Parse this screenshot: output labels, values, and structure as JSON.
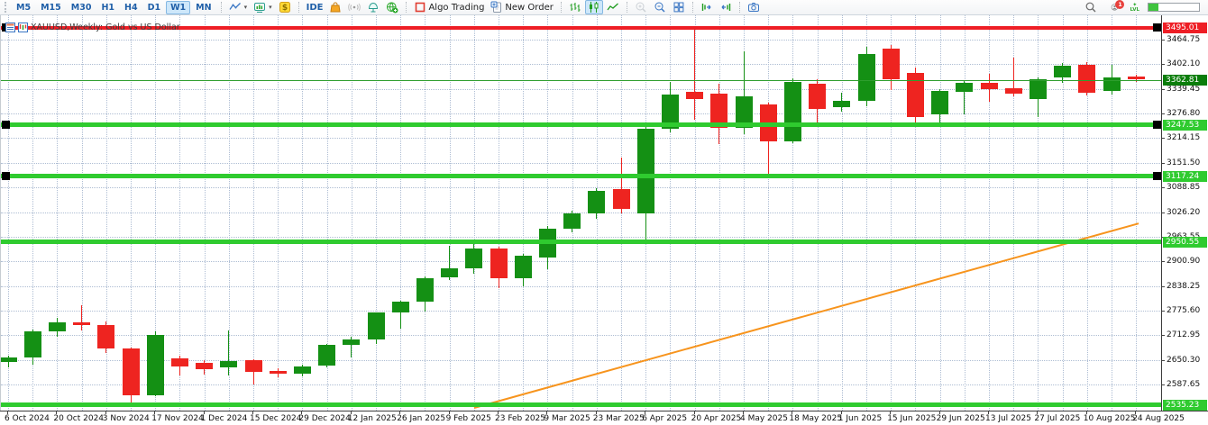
{
  "toolbar": {
    "timeframes": [
      {
        "label": "M5",
        "active": false
      },
      {
        "label": "M15",
        "active": false
      },
      {
        "label": "M30",
        "active": false
      },
      {
        "label": "H1",
        "active": false
      },
      {
        "label": "H4",
        "active": false
      },
      {
        "label": "D1",
        "active": false
      },
      {
        "label": "W1",
        "active": true
      },
      {
        "label": "MN",
        "active": false
      }
    ],
    "groups": [
      [
        {
          "name": "chart-line",
          "dropdown": true
        },
        {
          "name": "indicators",
          "dropdown": true
        },
        {
          "name": "dollar"
        }
      ],
      [
        {
          "name": "ide",
          "label": "IDE",
          "text_only": true
        },
        {
          "name": "market-bag"
        },
        {
          "name": "signals"
        },
        {
          "name": "vps"
        },
        {
          "name": "community"
        }
      ],
      [
        {
          "name": "algo-trading",
          "label": "Algo Trading"
        },
        {
          "name": "new-order",
          "label": "New Order"
        }
      ],
      [
        {
          "name": "bars"
        },
        {
          "name": "candles",
          "active": true
        },
        {
          "name": "line-chart"
        }
      ],
      [
        {
          "name": "zoom-in",
          "disabled": true
        },
        {
          "name": "zoom-out"
        },
        {
          "name": "grid"
        }
      ],
      [
        {
          "name": "shift-right"
        },
        {
          "name": "shift-left"
        }
      ],
      [
        {
          "name": "camera"
        }
      ]
    ],
    "right": {
      "search_icon": "search",
      "notifications_badge": "1",
      "level_label": "LVL",
      "level_star": "✦",
      "progress_fill_pct": 20
    }
  },
  "chart": {
    "title": "XAUUSD,Weekly: Gold vs US Dollar",
    "symbol": "XAUUSD",
    "period": "Weekly"
  },
  "chart_data": {
    "type": "candlestick",
    "title": "XAUUSD,Weekly: Gold vs US Dollar",
    "current_price": 3362.81,
    "visible_price_range": [
      2521,
      3527
    ],
    "colors": {
      "bull": "#149014",
      "bear": "#ee2420",
      "grid": "#aebdd3",
      "support": "#2fcb2f",
      "resistance": "#ee1e25",
      "bid_line": "#2e9e2e",
      "trend": "#f7941d"
    },
    "dates": [
      "6 Oct 2024",
      "13 Oct 2024",
      "20 Oct 2024",
      "27 Oct 2024",
      "3 Nov 2024",
      "10 Nov 2024",
      "17 Nov 2024",
      "24 Nov 2024",
      "1 Dec 2024",
      "8 Dec 2024",
      "15 Dec 2024",
      "22 Dec 2024",
      "29 Dec 2024",
      "5 Jan 2025",
      "12 Jan 2025",
      "19 Jan 2025",
      "26 Jan 2025",
      "2 Feb 2025",
      "9 Feb 2025",
      "16 Feb 2025",
      "23 Feb 2025",
      "2 Mar 2025",
      "9 Mar 2025",
      "16 Mar 2025",
      "23 Mar 2025",
      "30 Mar 2025",
      "6 Apr 2025",
      "13 Apr 2025",
      "20 Apr 2025",
      "27 Apr 2025",
      "4 May 2025",
      "11 May 2025",
      "18 May 2025",
      "25 May 2025",
      "1 Jun 2025",
      "8 Jun 2025",
      "15 Jun 2025",
      "22 Jun 2025",
      "29 Jun 2025",
      "6 Jul 2025",
      "13 Jul 2025",
      "20 Jul 2025",
      "27 Jul 2025",
      "3 Aug 2025",
      "10 Aug 2025",
      "17 Aug 2025",
      "24 Aug 2025"
    ],
    "open": [
      2645,
      2656,
      2722,
      2746,
      2738,
      2680,
      2560,
      2655,
      2643,
      2630,
      2650,
      2622,
      2615,
      2636,
      2688,
      2703,
      2771,
      2798,
      2861,
      2884,
      2934,
      2858,
      2910,
      2984,
      3022,
      3085,
      3023,
      3237,
      3331,
      3327,
      3241,
      3300,
      3205,
      3352,
      3292,
      3310,
      3441,
      3380,
      3275,
      3332,
      3356,
      3341,
      3313,
      3368,
      3400,
      3333,
      3372
    ],
    "high": [
      2662,
      2728,
      2758,
      2790,
      2748,
      2682,
      2723,
      2662,
      2650,
      2726,
      2652,
      2630,
      2638,
      2690,
      2710,
      2772,
      2800,
      2862,
      2940,
      2950,
      2938,
      2920,
      2990,
      3030,
      3087,
      3165,
      3245,
      3357,
      3500,
      3353,
      3435,
      3305,
      3366,
      3365,
      3330,
      3446,
      3451,
      3395,
      3340,
      3360,
      3378,
      3418,
      3368,
      3406,
      3408,
      3401,
      3375
    ],
    "low": [
      2632,
      2638,
      2708,
      2725,
      2668,
      2540,
      2558,
      2610,
      2613,
      2611,
      2588,
      2605,
      2608,
      2632,
      2656,
      2690,
      2730,
      2772,
      2852,
      2870,
      2832,
      2838,
      2880,
      2975,
      3009,
      3023,
      2951,
      3230,
      3260,
      3200,
      3224,
      3120,
      3202,
      3245,
      3282,
      3296,
      3336,
      3254,
      3248,
      3275,
      3306,
      3321,
      3268,
      3355,
      3323,
      3325,
      3358
    ],
    "close": [
      2656,
      2722,
      2746,
      2738,
      2680,
      2560,
      2713,
      2633,
      2627,
      2648,
      2620,
      2615,
      2634,
      2688,
      2703,
      2771,
      2798,
      2859,
      2884,
      2934,
      2858,
      2915,
      2984,
      3022,
      3081,
      3035,
      3237,
      3325,
      3314,
      3241,
      3320,
      3205,
      3357,
      3288,
      3310,
      3428,
      3363,
      3267,
      3335,
      3355,
      3340,
      3327,
      3365,
      3398,
      3330,
      3369,
      3363
    ],
    "y_axis_ticks": [
      3464.75,
      3402.1,
      3339.45,
      3276.8,
      3214.15,
      3151.5,
      3088.85,
      3026.2,
      2963.55,
      2900.9,
      2838.25,
      2775.6,
      2712.95,
      2650.3,
      2587.65
    ],
    "x_axis_labels": [
      "6 Oct 2024",
      "20 Oct 2024",
      "3 Nov 2024",
      "17 Nov 2024",
      "1 Dec 2024",
      "15 Dec 2024",
      "29 Dec 2024",
      "12 Jan 2025",
      "26 Jan 2025",
      "9 Feb 2025",
      "23 Feb 2025",
      "9 Mar 2025",
      "23 Mar 2025",
      "6 Apr 2025",
      "20 Apr 2025",
      "4 May 2025",
      "18 May 2025",
      "1 Jun 2025",
      "15 Jun 2025",
      "29 Jun 2025",
      "13 Jul 2025",
      "27 Jul 2025",
      "10 Aug 2025",
      "24 Aug 2025"
    ],
    "hlines": [
      {
        "price": 3495.01,
        "label": "3495.01",
        "color": "#ee1e25",
        "thickness": 4,
        "selected": true
      },
      {
        "price": 3247.53,
        "label": "3247.53",
        "color": "#2fcb2f",
        "thickness": 5,
        "selected": true
      },
      {
        "price": 3117.24,
        "label": "3117.24",
        "color": "#2fcb2f",
        "thickness": 5,
        "selected": true
      },
      {
        "price": 2950.55,
        "label": "2950.55",
        "color": "#2fcb2f",
        "thickness": 5,
        "selected": false
      },
      {
        "price": 2535.23,
        "label": "2535.23",
        "color": "#2fcb2f",
        "thickness": 5,
        "selected": false
      }
    ],
    "current_price_line": {
      "price": 3362.81,
      "label": "3362.81",
      "color": "#2e9e2e",
      "badge_color": "#0b7d0b"
    },
    "trendline": {
      "from": {
        "index": 19.0,
        "price": 2528
      },
      "to": {
        "index": 46.1,
        "price": 2997
      },
      "color": "#f7941d"
    }
  }
}
